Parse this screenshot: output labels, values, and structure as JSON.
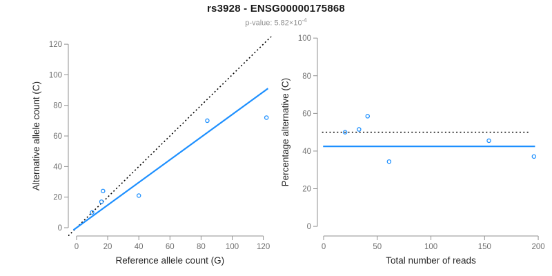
{
  "header": {
    "title": "rs3928 - ENSG00000175868",
    "subtitle_prefix": "p-value: 5.82×10",
    "subtitle_exponent": "-4"
  },
  "colors": {
    "accent_blue": "#1E90FF",
    "dotted_black": "#000000",
    "axis_line": "#8f8f8f",
    "tick_label": "#6f6f6f",
    "axis_title": "#262626",
    "subtitle_gray": "#8f8f8f"
  },
  "chart_data": [
    {
      "type": "scatter",
      "name": "allele-count-scatter",
      "title": "rs3928 - ENSG00000175868",
      "xlabel": "Reference allele count (G)",
      "ylabel": "Alternative allele count (C)",
      "xlim": [
        -5.3,
        127.7
      ],
      "ylim": [
        -5.4,
        125.0
      ],
      "x_ticks": [
        0,
        20,
        40,
        60,
        80,
        100,
        120
      ],
      "y_ticks": [
        0,
        20,
        40,
        60,
        80,
        100,
        120
      ],
      "grid": false,
      "points": [
        {
          "x": 10,
          "y": 10
        },
        {
          "x": 16,
          "y": 17
        },
        {
          "x": 17,
          "y": 24
        },
        {
          "x": 40,
          "y": 21
        },
        {
          "x": 84,
          "y": 70
        },
        {
          "x": 122,
          "y": 72
        }
      ],
      "lines": [
        {
          "name": "identity-line",
          "style": "dotted",
          "color": "#000000",
          "slope": 1,
          "intercept": 0,
          "x_range": [
            -5.3,
            127.7
          ]
        },
        {
          "name": "regression-line",
          "style": "solid",
          "color": "#1E90FF",
          "slope": 0.7404,
          "intercept": 0,
          "x_range": [
            -2,
            123
          ]
        }
      ]
    },
    {
      "type": "scatter",
      "name": "percentage-scatter",
      "title": "rs3928 - ENSG00000175868",
      "xlabel": "Total number of reads",
      "ylabel": "Percentage alternative (C)",
      "xlim": [
        -5.8,
        205.1
      ],
      "ylim": [
        -5.1,
        100.8
      ],
      "x_ticks": [
        0,
        50,
        100,
        150,
        200
      ],
      "y_ticks": [
        0,
        20,
        40,
        60,
        80,
        100
      ],
      "grid": false,
      "points": [
        {
          "x": 20,
          "y": 50
        },
        {
          "x": 33,
          "y": 51.5
        },
        {
          "x": 41,
          "y": 58.5
        },
        {
          "x": 61,
          "y": 34.4
        },
        {
          "x": 154,
          "y": 45.5
        },
        {
          "x": 196,
          "y": 37.1
        }
      ],
      "lines": [
        {
          "name": "fifty-percent-line",
          "style": "dotted",
          "color": "#000000",
          "slope": 0,
          "intercept": 50,
          "x_range": [
            -1.5,
            192.5
          ]
        },
        {
          "name": "mean-percentage-line",
          "style": "solid",
          "color": "#1E90FF",
          "slope": 0,
          "intercept": 42.5,
          "x_range": [
            -0.5,
            197
          ]
        }
      ]
    }
  ]
}
